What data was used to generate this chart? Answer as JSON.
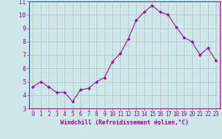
{
  "x": [
    0,
    1,
    2,
    3,
    4,
    5,
    6,
    7,
    8,
    9,
    10,
    11,
    12,
    13,
    14,
    15,
    16,
    17,
    18,
    19,
    20,
    21,
    22,
    23
  ],
  "y": [
    4.6,
    5.0,
    4.6,
    4.2,
    4.2,
    3.5,
    4.4,
    4.5,
    5.0,
    5.3,
    6.5,
    7.1,
    8.2,
    9.6,
    10.2,
    10.7,
    10.2,
    10.0,
    9.1,
    8.3,
    8.0,
    7.0,
    7.5,
    6.6
  ],
  "line_color": "#990099",
  "marker": "D",
  "markersize": 2.0,
  "bg_color": "#cce8e8",
  "grid_color": "#bbbbbb",
  "xlim": [
    -0.5,
    23.5
  ],
  "ylim": [
    3,
    11
  ],
  "yticks": [
    3,
    4,
    5,
    6,
    7,
    8,
    9,
    10,
    11
  ],
  "xtick_labels": [
    "0",
    "1",
    "2",
    "3",
    "4",
    "5",
    "6",
    "7",
    "8",
    "9",
    "10",
    "11",
    "12",
    "13",
    "14",
    "15",
    "16",
    "17",
    "18",
    "19",
    "20",
    "21",
    "22",
    "23"
  ],
  "xlabel": "Windchill (Refroidissement éolien,°C)",
  "xlabel_color": "#990099",
  "tick_color": "#990099",
  "spine_color": "#990099",
  "tick_fontsize": 5.5,
  "xlabel_fontsize": 6.0,
  "ytick_fontsize": 6.0
}
